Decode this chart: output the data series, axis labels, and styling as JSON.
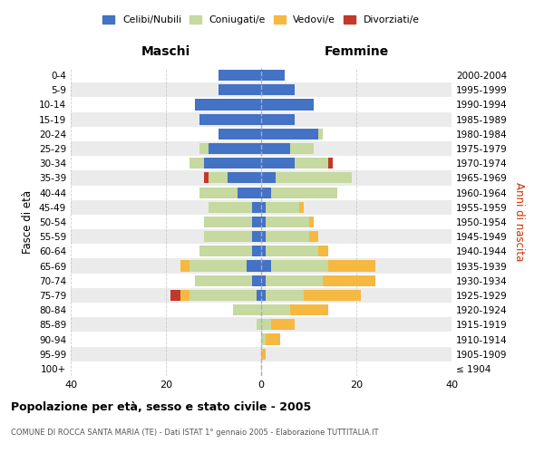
{
  "age_groups": [
    "100+",
    "95-99",
    "90-94",
    "85-89",
    "80-84",
    "75-79",
    "70-74",
    "65-69",
    "60-64",
    "55-59",
    "50-54",
    "45-49",
    "40-44",
    "35-39",
    "30-34",
    "25-29",
    "20-24",
    "15-19",
    "10-14",
    "5-9",
    "0-4"
  ],
  "birth_years": [
    "≤ 1904",
    "1905-1909",
    "1910-1914",
    "1915-1919",
    "1920-1924",
    "1925-1929",
    "1930-1934",
    "1935-1939",
    "1940-1944",
    "1945-1949",
    "1950-1954",
    "1955-1959",
    "1960-1964",
    "1965-1969",
    "1970-1974",
    "1975-1979",
    "1980-1984",
    "1985-1989",
    "1990-1994",
    "1995-1999",
    "2000-2004"
  ],
  "maschi_celibi": [
    0,
    0,
    0,
    0,
    0,
    1,
    2,
    3,
    2,
    2,
    2,
    2,
    5,
    7,
    12,
    11,
    9,
    13,
    14,
    9,
    9
  ],
  "maschi_coniugati": [
    0,
    0,
    0,
    1,
    6,
    14,
    12,
    12,
    11,
    10,
    10,
    9,
    8,
    4,
    3,
    2,
    0,
    0,
    0,
    0,
    0
  ],
  "maschi_vedovi": [
    0,
    0,
    0,
    0,
    0,
    2,
    0,
    2,
    0,
    0,
    0,
    0,
    0,
    0,
    0,
    0,
    0,
    0,
    0,
    0,
    0
  ],
  "maschi_divorziati": [
    0,
    0,
    0,
    0,
    0,
    2,
    0,
    0,
    0,
    0,
    0,
    0,
    0,
    1,
    0,
    0,
    0,
    0,
    0,
    0,
    0
  ],
  "femmine_nubili": [
    0,
    0,
    0,
    0,
    0,
    1,
    1,
    2,
    1,
    1,
    1,
    1,
    2,
    3,
    7,
    6,
    12,
    7,
    11,
    7,
    5
  ],
  "femmine_coniugate": [
    0,
    0,
    1,
    2,
    6,
    8,
    12,
    12,
    11,
    9,
    9,
    7,
    14,
    16,
    7,
    5,
    1,
    0,
    0,
    0,
    0
  ],
  "femmine_vedove": [
    0,
    1,
    3,
    5,
    8,
    12,
    11,
    10,
    2,
    2,
    1,
    1,
    0,
    0,
    0,
    0,
    0,
    0,
    0,
    0,
    0
  ],
  "femmine_divorziate": [
    0,
    0,
    0,
    0,
    0,
    0,
    0,
    0,
    0,
    0,
    0,
    0,
    0,
    0,
    1,
    0,
    0,
    0,
    0,
    0,
    0
  ],
  "color_celibi": "#4472C4",
  "color_coniugati": "#C5D9A0",
  "color_vedovi": "#F5B942",
  "color_divorziati": "#C0392B",
  "xlim": 40,
  "xtick_vals": [
    -40,
    -20,
    0,
    20,
    40
  ],
  "title": "Popolazione per età, sesso e stato civile - 2005",
  "subtitle": "COMUNE DI ROCCA SANTA MARIA (TE) - Dati ISTAT 1° gennaio 2005 - Elaborazione TUTTITALIA.IT",
  "ylabel_left": "Fasce di età",
  "ylabel_right": "Anni di nascita",
  "header_maschi": "Maschi",
  "header_femmine": "Femmine",
  "legend_labels": [
    "Celibi/Nubili",
    "Coniugati/e",
    "Vedovi/e",
    "Divorziati/e"
  ],
  "bar_height": 0.75
}
